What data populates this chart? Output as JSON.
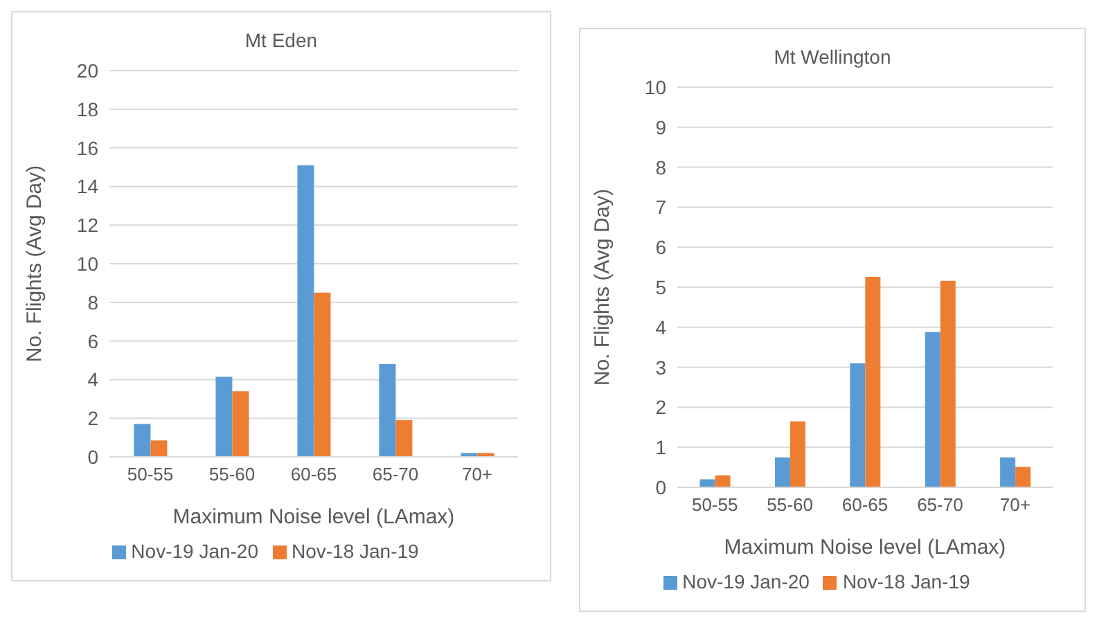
{
  "chart_data": [
    {
      "type": "bar",
      "title": "Mt Eden",
      "xlabel": "Maximum Noise level (LAmax)",
      "ylabel": "No. Flights (Avg Day)",
      "categories": [
        "50-55",
        "55-60",
        "60-65",
        "65-70",
        "70+"
      ],
      "series": [
        {
          "name": "Nov-19 Jan-20",
          "color": "#5b9bd5",
          "values": [
            1.7,
            4.15,
            15.1,
            4.8,
            0.2
          ]
        },
        {
          "name": "Nov-18 Jan-19",
          "color": "#ed7d31",
          "values": [
            0.85,
            3.4,
            8.5,
            1.9,
            0.2
          ]
        }
      ],
      "ylim": [
        0,
        20
      ],
      "yticks": [
        0,
        2,
        4,
        6,
        8,
        10,
        12,
        14,
        16,
        18,
        20
      ],
      "grid": "y",
      "legend": "bottom"
    },
    {
      "type": "bar",
      "title": "Mt Wellington",
      "xlabel": "Maximum Noise level (LAmax)",
      "ylabel": "No. Flights (Avg Day)",
      "categories": [
        "50-55",
        "55-60",
        "60-65",
        "65-70",
        "70+"
      ],
      "series": [
        {
          "name": "Nov-19 Jan-20",
          "color": "#5b9bd5",
          "values": [
            0.2,
            0.75,
            3.1,
            3.88,
            0.75
          ]
        },
        {
          "name": "Nov-18 Jan-19",
          "color": "#ed7d31",
          "values": [
            0.3,
            1.65,
            5.26,
            5.16,
            0.51
          ]
        }
      ],
      "ylim": [
        0,
        10
      ],
      "yticks": [
        0,
        1,
        2,
        3,
        4,
        5,
        6,
        7,
        8,
        9,
        10
      ],
      "grid": "y",
      "legend": "bottom"
    }
  ]
}
